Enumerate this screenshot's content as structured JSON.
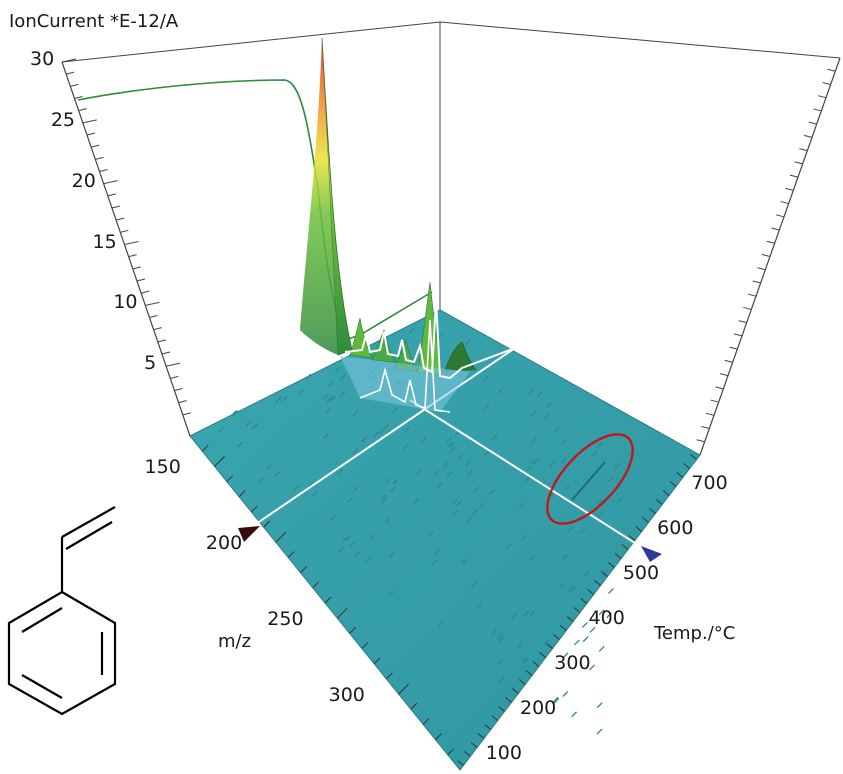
{
  "chart_data": {
    "type": "3d-waterfall",
    "y_axis": {
      "label": "IonCurrent *E-12/A",
      "ticks": [
        "5",
        "10",
        "15",
        "20",
        "25",
        "30"
      ],
      "range": [
        0,
        30
      ]
    },
    "mz_axis": {
      "label": "m/z",
      "ticks": [
        "150",
        "200",
        "250",
        "300"
      ],
      "range": [
        130,
        350
      ]
    },
    "temp_axis": {
      "label": "Temp./°C",
      "ticks": [
        "100",
        "200",
        "300",
        "400",
        "500",
        "600",
        "700"
      ],
      "range": [
        60,
        760
      ]
    },
    "peaks": [
      {
        "mz": 104,
        "temp": 420,
        "value": 30
      },
      {
        "mz": 130,
        "temp": 430,
        "value": 8
      },
      {
        "mz": 150,
        "temp": 425,
        "value": 6
      },
      {
        "mz": 158,
        "temp": 428,
        "value": 5
      },
      {
        "mz": 170,
        "temp": 430,
        "value": 4
      },
      {
        "mz": 180,
        "temp": 432,
        "value": 3
      },
      {
        "mz": 190,
        "temp": 435,
        "value": 10
      },
      {
        "mz": 200,
        "temp": 440,
        "value": 3
      }
    ],
    "markers": [
      {
        "axis": "m/z",
        "value": 200,
        "color": "#3a0d0d"
      },
      {
        "axis": "Temp./°C",
        "value": 470,
        "color": "#2c3a9c"
      }
    ],
    "highlight": {
      "mz": 200,
      "temp": 640,
      "color": "#c0181e"
    },
    "colors": {
      "floor": "#3aa3ad",
      "trace": "#2f8a3a",
      "slice": "#ffffff"
    }
  },
  "molecule": {
    "name": "styrene-structure"
  }
}
